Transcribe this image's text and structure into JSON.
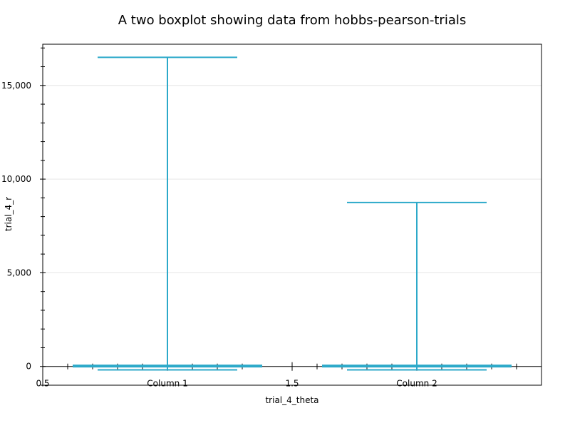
{
  "chart_data": {
    "type": "box",
    "title": "A two boxplot showing data from hobbs-pearson-trials",
    "xlabel": "trial_4_theta",
    "ylabel": "trial_4_r",
    "categories": [
      "Column 1",
      "Column 2"
    ],
    "x_tick_labels": [
      "0.5",
      "1.5"
    ],
    "y_ticks": [
      0,
      5000,
      10000,
      15000
    ],
    "y_tick_labels": [
      "0",
      "5,000",
      "10,000",
      "15,000"
    ],
    "ylim": [
      -1000,
      17200
    ],
    "xlim": [
      0.5,
      2.5
    ],
    "grid": true,
    "color": "#2ca9c9",
    "boxes": [
      {
        "name": "Column 1",
        "whisker_low": -180,
        "q1": 0,
        "median": 30,
        "q3": 60,
        "whisker_high": 16500
      },
      {
        "name": "Column 2",
        "whisker_low": -180,
        "q1": 0,
        "median": 30,
        "q3": 60,
        "whisker_high": 8750
      }
    ]
  }
}
